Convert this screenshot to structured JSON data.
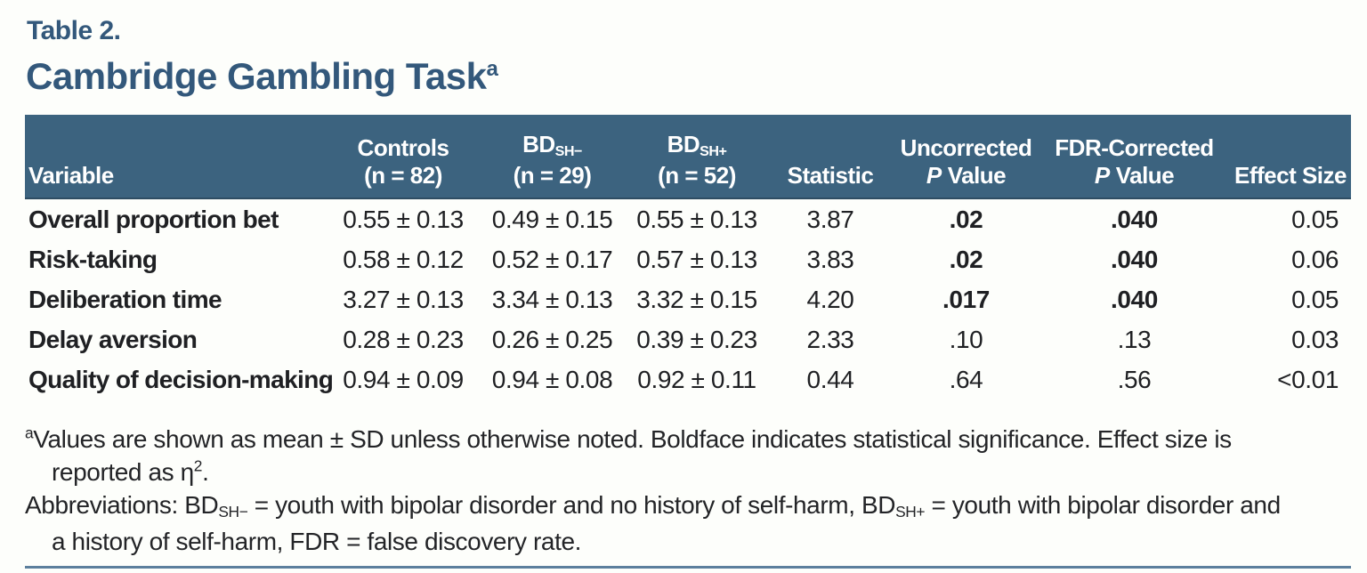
{
  "meta": {
    "table_label": "Table 2.",
    "title": "Cambridge Gambling Task",
    "title_footnote_marker": "a"
  },
  "colors": {
    "header_background": "#3c637f",
    "title_text": "#33587b",
    "bottom_rule": "#5c7f9d",
    "body_text": "#1f2023",
    "page_background": "#fdfefb"
  },
  "header": {
    "variable": "Variable",
    "controls_line1": "Controls",
    "controls_line2": "(n = 82)",
    "bdshm_base": "BD",
    "bdshm_sub": "SH−",
    "bdshm_line2": "(n = 29)",
    "bdshp_base": "BD",
    "bdshp_sub": "SH+",
    "bdshp_line2": "(n = 52)",
    "statistic": "Statistic",
    "uncorrected_line1": "Uncorrected",
    "fdr_line1": "FDR-Corrected",
    "p": "P",
    "value": "Value",
    "effect_size": "Effect Size"
  },
  "rows": [
    {
      "variable": "Overall proportion bet",
      "controls": "0.55 ± 0.13",
      "bd_sh_minus": "0.49 ± 0.15",
      "bd_sh_plus": "0.55 ± 0.13",
      "statistic": "3.87",
      "uncorrected_p": ".02",
      "fdr_p": ".040",
      "effect_size": "0.05",
      "significant": true
    },
    {
      "variable": "Risk-taking",
      "controls": "0.58 ± 0.12",
      "bd_sh_minus": "0.52 ± 0.17",
      "bd_sh_plus": "0.57 ± 0.13",
      "statistic": "3.83",
      "uncorrected_p": ".02",
      "fdr_p": ".040",
      "effect_size": "0.06",
      "significant": true
    },
    {
      "variable": "Deliberation time",
      "controls": "3.27 ± 0.13",
      "bd_sh_minus": "3.34 ± 0.13",
      "bd_sh_plus": "3.32 ± 0.15",
      "statistic": "4.20",
      "uncorrected_p": ".017",
      "fdr_p": ".040",
      "effect_size": "0.05",
      "significant": true
    },
    {
      "variable": "Delay aversion",
      "controls": "0.28 ± 0.23",
      "bd_sh_minus": "0.26 ± 0.25",
      "bd_sh_plus": "0.39 ± 0.23",
      "statistic": "2.33",
      "uncorrected_p": ".10",
      "fdr_p": ".13",
      "effect_size": "0.03",
      "significant": false
    },
    {
      "variable": "Quality of decision-making",
      "controls": "0.94 ± 0.09",
      "bd_sh_minus": "0.94 ± 0.08",
      "bd_sh_plus": "0.92 ± 0.11",
      "statistic": "0.44",
      "uncorrected_p": ".64",
      "fdr_p": ".56",
      "effect_size": "<0.01",
      "significant": false
    }
  ],
  "footnotes": {
    "marker": "a",
    "line1": "Values are shown as mean ± SD unless otherwise noted. Boldface indicates statistical significance. Effect size is",
    "line2_pre": "reported as η",
    "line2_sup": "2",
    "line2_post": ".",
    "line3_pre": "Abbreviations: BD",
    "line3_sub1": "SH−",
    "line3_mid": " = youth with bipolar disorder and no history of self-harm, BD",
    "line3_sub2": "SH+",
    "line3_post": " = youth with bipolar disorder and",
    "line4": "a history of self-harm, FDR = false discovery rate."
  }
}
